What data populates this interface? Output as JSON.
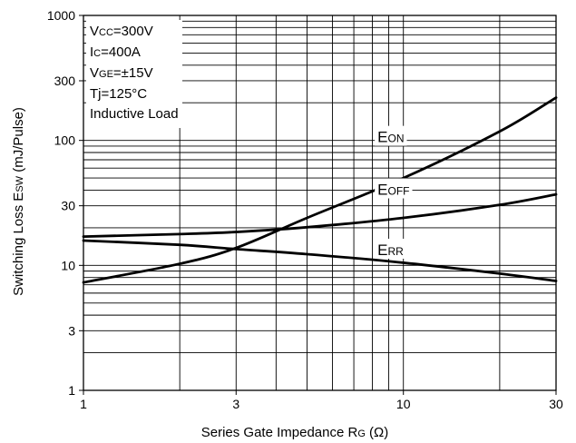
{
  "chart_data": {
    "type": "line",
    "xlabel": {
      "main": "Series Gate Impedance R",
      "sub": "G",
      "unit": " (Ω)"
    },
    "ylabel": {
      "pre": "Switching Loss E",
      "sub": "SW",
      "post": " (mJ/Pulse)"
    },
    "x_scale": "log",
    "y_scale": "log",
    "xlim": [
      1,
      30
    ],
    "ylim": [
      1,
      1000
    ],
    "x_ticks": [
      1,
      3,
      10,
      30
    ],
    "x_tick_labels": [
      "1",
      "3",
      "10",
      "30"
    ],
    "y_ticks": [
      1,
      3,
      10,
      30,
      100,
      300,
      1000
    ],
    "y_tick_labels": [
      "1",
      "3",
      "10",
      "30",
      "100",
      "300",
      "1000"
    ],
    "grid": true,
    "conditions": [
      {
        "pre": "V",
        "sub": "CC",
        "post": "=300V"
      },
      {
        "pre": "I",
        "sub": "C",
        "post": "=400A"
      },
      {
        "pre": "V",
        "sub": "GE",
        "post": "=±15V"
      },
      {
        "pre": "Tj=125°C",
        "sub": "",
        "post": ""
      },
      {
        "pre": "Inductive Load",
        "sub": "",
        "post": ""
      }
    ],
    "series": [
      {
        "name": "E",
        "name_sub": "ON",
        "label_at": [
          8.3,
          100
        ],
        "x": [
          1,
          2,
          3,
          5,
          10,
          20,
          30
        ],
        "y": [
          7.3,
          10.3,
          13.8,
          24,
          50,
          118,
          220
        ]
      },
      {
        "name": "E",
        "name_sub": "OFF",
        "label_at": [
          8.3,
          38
        ],
        "x": [
          1,
          2,
          3,
          5,
          10,
          20,
          30
        ],
        "y": [
          17,
          17.8,
          18.5,
          20.2,
          24,
          30.5,
          37
        ]
      },
      {
        "name": "E",
        "name_sub": "RR",
        "label_at": [
          8.3,
          12.5
        ],
        "x": [
          1,
          2,
          3,
          5,
          10,
          20,
          30
        ],
        "y": [
          15.8,
          14.6,
          13.5,
          12.3,
          10.5,
          8.6,
          7.5
        ]
      }
    ]
  }
}
